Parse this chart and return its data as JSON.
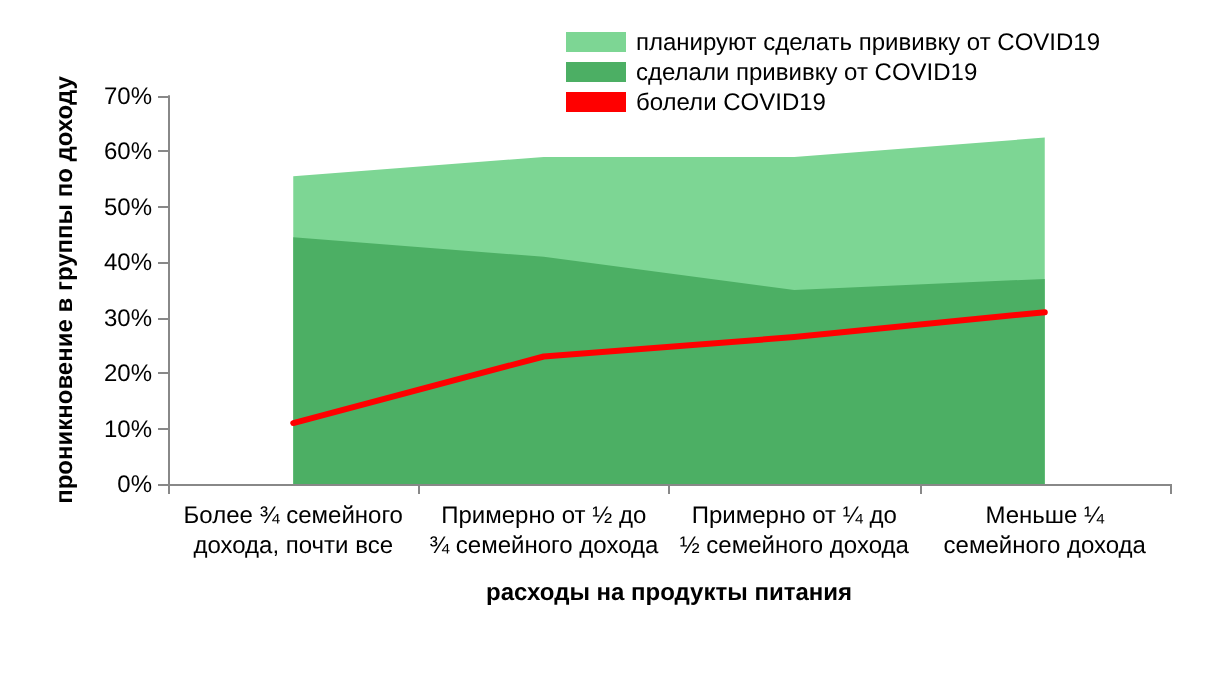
{
  "chart_data": {
    "type": "area",
    "xlabel": "расходы на продукты питания",
    "ylabel": "проникновение в группы по доходу",
    "categories": [
      "Более ¾ семейного\nдохода, почти все",
      "Примерно от ½ до\n¾ семейного дохода",
      "Примерно от ¼ до\n½ семейного дохода",
      "Меньше ¼\nсемейного дохода"
    ],
    "series": [
      {
        "name": "планируют сделать прививку от COVID19",
        "color": "#7dd694",
        "values": [
          55.5,
          59,
          59,
          62.5
        ]
      },
      {
        "name": "сделали прививку от COVID19",
        "color": "#4caf64",
        "values": [
          44.5,
          41,
          35,
          37
        ]
      },
      {
        "name": "болели COVID19",
        "type": "line",
        "color": "#ff0000",
        "values": [
          11,
          23,
          26.5,
          31
        ]
      }
    ],
    "ylim": [
      0,
      70
    ],
    "yticks": [
      {
        "value": 0,
        "label": "0%"
      },
      {
        "value": 10,
        "label": "10%"
      },
      {
        "value": 20,
        "label": "20%"
      },
      {
        "value": 30,
        "label": "30%"
      },
      {
        "value": 40,
        "label": "40%"
      },
      {
        "value": 50,
        "label": "50%"
      },
      {
        "value": 60,
        "label": "60%"
      },
      {
        "value": 70,
        "label": "70%"
      }
    ],
    "grid": false,
    "legend": "top",
    "marker": "none"
  }
}
